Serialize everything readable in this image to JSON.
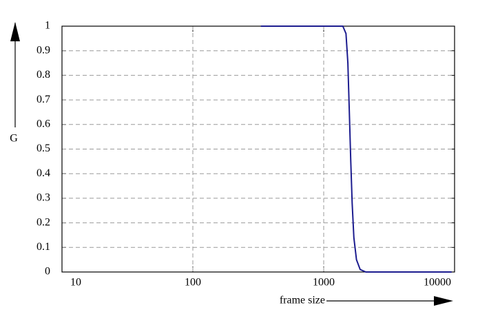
{
  "chart_data": {
    "type": "line",
    "xlabel": "frame size",
    "ylabel": "G",
    "xscale": "log",
    "grid": true,
    "x": [
      331,
      500,
      1000,
      1400,
      1480,
      1530,
      1570,
      1610,
      1650,
      1700,
      1780,
      1900,
      2100,
      3000,
      5000,
      9500
    ],
    "series": [
      {
        "name": "G",
        "color": "#1c1c8f",
        "values": [
          1,
          1,
          1,
          1,
          0.97,
          0.85,
          0.65,
          0.45,
          0.28,
          0.14,
          0.05,
          0.01,
          0,
          0,
          0,
          0
        ]
      }
    ],
    "xlim": [
      10,
      10000
    ],
    "xticks": [
      10,
      100,
      1000,
      10000
    ],
    "ylim": [
      0,
      1
    ],
    "yticks": [
      0,
      0.1,
      0.2,
      0.3,
      0.4,
      0.5,
      0.6,
      0.7,
      0.8,
      0.9,
      1
    ]
  }
}
